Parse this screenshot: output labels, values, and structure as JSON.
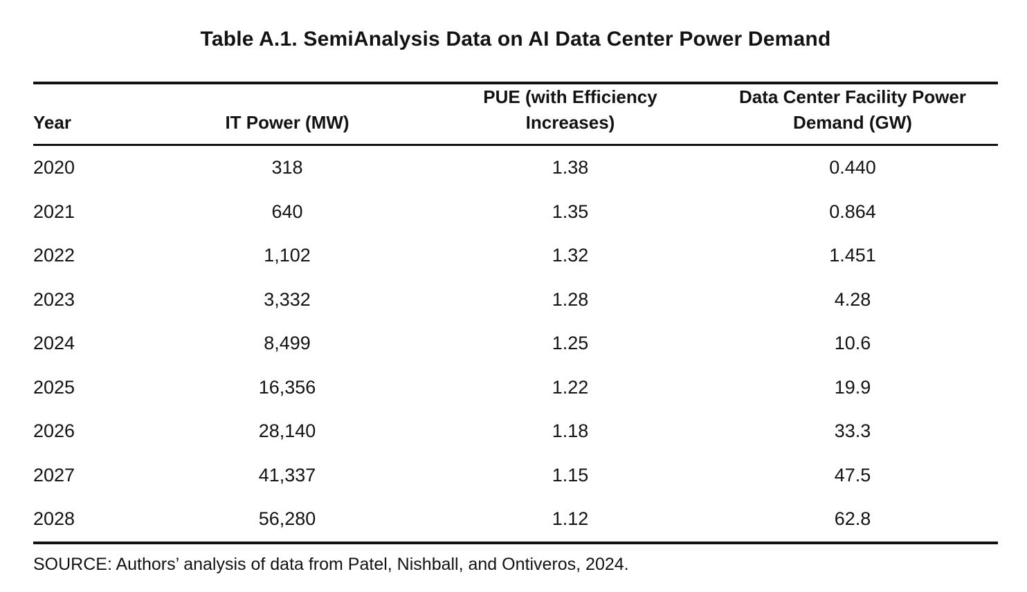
{
  "chart_data": {
    "type": "table",
    "title": "Table A.1. SemiAnalysis Data on AI Data Center Power Demand",
    "columns": [
      "Year",
      "IT Power (MW)",
      "PUE (with Efficiency Increases)",
      "Data Center Facility Power Demand (GW)"
    ],
    "rows": [
      [
        "2020",
        "318",
        "1.38",
        "0.440"
      ],
      [
        "2021",
        "640",
        "1.35",
        "0.864"
      ],
      [
        "2022",
        "1,102",
        "1.32",
        "1.451"
      ],
      [
        "2023",
        "3,332",
        "1.28",
        "4.28"
      ],
      [
        "2024",
        "8,499",
        "1.25",
        "10.6"
      ],
      [
        "2025",
        "16,356",
        "1.22",
        "19.9"
      ],
      [
        "2026",
        "28,140",
        "1.18",
        "33.3"
      ],
      [
        "2027",
        "41,337",
        "1.15",
        "47.5"
      ],
      [
        "2028",
        "56,280",
        "1.12",
        "62.8"
      ]
    ],
    "column_units": [
      "",
      "MW",
      "",
      "GW"
    ],
    "layout": {
      "grid": "horizontal rules only",
      "body_alignment": [
        "left",
        "center",
        "center",
        "center"
      ]
    }
  },
  "source_note": "SOURCE: Authors’ analysis of data from Patel, Nishball, and Ontiveros, 2024.",
  "colors": {
    "text": "#121212",
    "rule": "#121212",
    "background": "#ffffff"
  }
}
